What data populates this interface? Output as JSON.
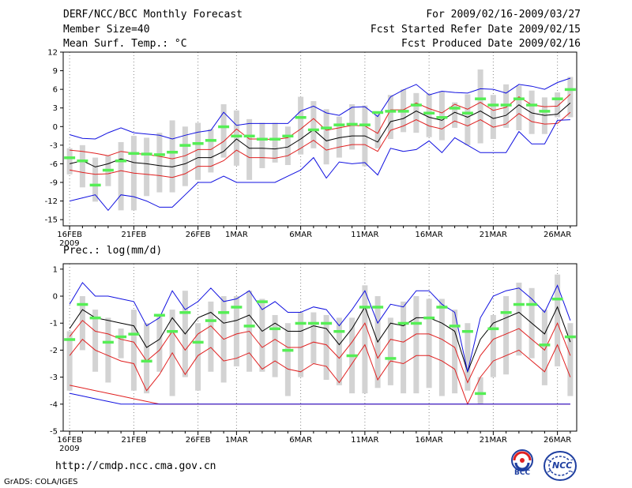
{
  "header": {
    "title": "DERF/NCC/BCC Monthly Forecast",
    "member_size": "Member Size=40",
    "variable": "Mean Surf. Temp.: °C",
    "period": "For 2009/02/16-2009/03/27",
    "refer_date": "Fcst Started Refer Date 2009/02/15",
    "produced_date": "Fcst Produced Date 2009/02/16"
  },
  "footer": {
    "url": "http://cmdp.ncc.cma.gov.cn",
    "credit": "GrADS: COLA/IGES",
    "logo_bcc": "BCC",
    "logo_ncc": "NCC"
  },
  "colors": {
    "box": "#d3d3d3",
    "mean_marker": "#55ee55",
    "ensemble_mean": "#000000",
    "spread_inner": "#e02020",
    "spread_outer": "#1010e0"
  },
  "chart_data": [
    {
      "type": "line",
      "title": "Mean Surf. Temp.: °C",
      "ylabel": "°C",
      "x_dates": [
        "16FEB",
        "17FEB",
        "18FEB",
        "19FEB",
        "20FEB",
        "21FEB",
        "22FEB",
        "23FEB",
        "24FEB",
        "25FEB",
        "26FEB",
        "27FEB",
        "28FEB",
        "1MAR",
        "2MAR",
        "3MAR",
        "4MAR",
        "5MAR",
        "6MAR",
        "7MAR",
        "8MAR",
        "9MAR",
        "10MAR",
        "11MAR",
        "12MAR",
        "13MAR",
        "14MAR",
        "15MAR",
        "16MAR",
        "17MAR",
        "18MAR",
        "19MAR",
        "20MAR",
        "21MAR",
        "22MAR",
        "23MAR",
        "24MAR",
        "25MAR",
        "26MAR",
        "27MAR"
      ],
      "xtick_labels": [
        "16FEB",
        "21FEB",
        "26FEB",
        "1MAR",
        "6MAR",
        "11MAR",
        "16MAR",
        "21MAR",
        "26MAR"
      ],
      "xtick_index": [
        0,
        5,
        10,
        13,
        18,
        23,
        28,
        33,
        38
      ],
      "year_label": "2009",
      "ylim": [
        -16,
        12
      ],
      "yticks": [
        12,
        9,
        6,
        3,
        0,
        -3,
        -6,
        -9,
        -12,
        -15
      ],
      "series": [
        {
          "name": "ensemble mean",
          "values": [
            -6.0,
            -5.5,
            -6.5,
            -6.0,
            -5.2,
            -5.8,
            -6.0,
            -6.3,
            -6.5,
            -6.0,
            -5.0,
            -5.0,
            -4.0,
            -2.0,
            -3.5,
            -3.5,
            -3.6,
            -3.3,
            -2.0,
            -0.5,
            -2.3,
            -1.8,
            -1.5,
            -1.5,
            -2.5,
            0.8,
            1.3,
            2.5,
            1.5,
            1.0,
            2.3,
            1.5,
            2.5,
            1.3,
            1.8,
            3.5,
            2.2,
            1.8,
            2.0,
            3.8
          ]
        },
        {
          "name": "spread inner upper",
          "values": [
            -3.8,
            -4.0,
            -4.3,
            -4.7,
            -4.0,
            -4.3,
            -4.5,
            -4.8,
            -5.2,
            -4.7,
            -3.7,
            -3.7,
            -2.4,
            -0.4,
            -2.0,
            -2.0,
            -2.1,
            -1.8,
            -0.4,
            1.3,
            -0.6,
            -0.2,
            0.2,
            0.1,
            -1.1,
            2.7,
            2.7,
            3.8,
            2.9,
            2.2,
            3.6,
            2.8,
            3.9,
            2.6,
            3.1,
            4.8,
            3.5,
            3.2,
            3.3,
            5.2
          ]
        },
        {
          "name": "spread inner lower",
          "values": [
            -7.0,
            -7.4,
            -7.7,
            -7.6,
            -7.1,
            -7.5,
            -7.7,
            -7.9,
            -8.2,
            -7.6,
            -6.4,
            -6.4,
            -5.5,
            -3.8,
            -5.0,
            -5.0,
            -5.1,
            -4.7,
            -3.5,
            -2.2,
            -3.8,
            -3.3,
            -2.9,
            -2.9,
            -4.0,
            -0.6,
            0.1,
            1.1,
            0.1,
            -0.4,
            0.9,
            0.1,
            1.1,
            -0.1,
            0.4,
            2.1,
            0.8,
            0.4,
            0.5,
            2.3
          ]
        },
        {
          "name": "spread outer upper",
          "values": [
            -1.3,
            -1.9,
            -2.0,
            -1.0,
            -0.2,
            -1.0,
            -1.2,
            -1.4,
            -2.0,
            -1.4,
            -0.9,
            -0.6,
            2.3,
            0.2,
            0.5,
            0.5,
            0.5,
            0.5,
            2.5,
            3.3,
            2.2,
            1.8,
            3.1,
            3.2,
            1.6,
            4.8,
            5.9,
            6.8,
            5.1,
            5.7,
            5.5,
            5.4,
            6.1,
            6.0,
            5.4,
            6.8,
            6.5,
            6.0,
            7.1,
            7.8
          ]
        },
        {
          "name": "spread outer lower",
          "values": [
            -12.0,
            -11.5,
            -11.0,
            -13.5,
            -11.0,
            -11.3,
            -12.0,
            -13.0,
            -13.0,
            -11.0,
            -9.0,
            -9.0,
            -8.0,
            -9.0,
            -9.0,
            -9.0,
            -9.0,
            -8.0,
            -7.0,
            -5.0,
            -8.3,
            -5.7,
            -6.0,
            -5.8,
            -7.8,
            -3.5,
            -4.0,
            -3.7,
            -2.3,
            -4.2,
            -1.8,
            -3.0,
            -4.2,
            -4.2,
            -4.2,
            -0.8,
            -2.8,
            -2.8,
            1.0,
            1.1
          ]
        }
      ],
      "mean_markers": [
        -5.0,
        -5.5,
        -9.4,
        -7.0,
        -5.5,
        -4.3,
        -4.4,
        -4.5,
        -4.1,
        -3.0,
        -2.7,
        -2.2,
        0.0,
        -1.5,
        -1.5,
        -2.0,
        -2.0,
        -1.5,
        1.5,
        -0.5,
        -0.2,
        0.3,
        0.4,
        0.3,
        2.3,
        2.5,
        2.5,
        3.5,
        2.2,
        1.5,
        3.0,
        2.2,
        4.5,
        3.5,
        3.5,
        4.5,
        3.5,
        2.5,
        4.5,
        6.0
      ],
      "box_high": [
        -3.5,
        -3.0,
        -5.0,
        -4.7,
        -2.5,
        -1.5,
        -1.8,
        -1.0,
        1.0,
        0.0,
        0.6,
        -0.4,
        3.6,
        2.6,
        1.2,
        0.6,
        0.6,
        0.0,
        4.8,
        4.1,
        2.8,
        1.6,
        3.6,
        3.4,
        2.0,
        5.1,
        6.0,
        5.4,
        5.3,
        5.7,
        3.9,
        5.2,
        9.2,
        5.1,
        6.8,
        6.6,
        5.8,
        4.7,
        5.5,
        8.0
      ],
      "box_low": [
        -7.7,
        -9.8,
        -12.1,
        -9.6,
        -13.5,
        -13.5,
        -11.2,
        -10.6,
        -10.6,
        -9.6,
        -8.6,
        -7.4,
        -5.0,
        -6.3,
        -8.6,
        -6.7,
        -5.8,
        -6.2,
        -4.5,
        -3.5,
        -6.1,
        -5.0,
        -3.7,
        -6.4,
        -3.5,
        -2.0,
        -0.9,
        -1.0,
        -1.7,
        -2.2,
        -0.2,
        -3.0,
        -2.7,
        -2.0,
        -0.2,
        -0.6,
        -1.2,
        -1.2,
        1.5,
        1.5
      ]
    },
    {
      "type": "line",
      "title": "Prec.: log(mm/d)",
      "ylabel": "log(mm/d)",
      "x_dates": [
        "16FEB",
        "17FEB",
        "18FEB",
        "19FEB",
        "20FEB",
        "21FEB",
        "22FEB",
        "23FEB",
        "24FEB",
        "25FEB",
        "26FEB",
        "27FEB",
        "28FEB",
        "1MAR",
        "2MAR",
        "3MAR",
        "4MAR",
        "5MAR",
        "6MAR",
        "7MAR",
        "8MAR",
        "9MAR",
        "10MAR",
        "11MAR",
        "12MAR",
        "13MAR",
        "14MAR",
        "15MAR",
        "16MAR",
        "17MAR",
        "18MAR",
        "19MAR",
        "20MAR",
        "21MAR",
        "22MAR",
        "23MAR",
        "24MAR",
        "25MAR",
        "26MAR",
        "27MAR"
      ],
      "xtick_labels": [
        "16FEB",
        "21FEB",
        "26FEB",
        "1MAR",
        "6MAR",
        "11MAR",
        "16MAR",
        "21MAR",
        "26MAR"
      ],
      "xtick_index": [
        0,
        5,
        10,
        13,
        18,
        23,
        28,
        33,
        38
      ],
      "year_label": "2009",
      "ylim": [
        -5,
        1.2
      ],
      "yticks": [
        1,
        0,
        -1,
        -2,
        -3,
        -4,
        -5
      ],
      "series": [
        {
          "name": "ensemble mean",
          "values": [
            -1.2,
            -0.5,
            -0.8,
            -0.9,
            -1.0,
            -1.1,
            -1.9,
            -1.6,
            -0.8,
            -1.4,
            -0.8,
            -0.6,
            -1.0,
            -0.9,
            -0.7,
            -1.3,
            -1.0,
            -1.3,
            -1.3,
            -1.1,
            -1.2,
            -1.8,
            -1.2,
            -0.4,
            -1.7,
            -1.0,
            -1.1,
            -0.8,
            -0.8,
            -1.0,
            -1.3,
            -2.8,
            -1.6,
            -1.0,
            -0.8,
            -0.6,
            -1.0,
            -1.4,
            -0.4,
            -1.7
          ]
        },
        {
          "name": "spread inner upper",
          "values": [
            -1.5,
            -0.9,
            -1.3,
            -1.4,
            -1.6,
            -1.7,
            -2.4,
            -2.0,
            -1.3,
            -2.0,
            -1.4,
            -1.1,
            -1.6,
            -1.4,
            -1.3,
            -1.9,
            -1.6,
            -1.9,
            -1.9,
            -1.7,
            -1.8,
            -2.3,
            -1.7,
            -1.0,
            -2.3,
            -1.6,
            -1.7,
            -1.4,
            -1.4,
            -1.6,
            -1.9,
            -3.2,
            -2.2,
            -1.6,
            -1.4,
            -1.2,
            -1.6,
            -2.0,
            -1.0,
            -2.2
          ]
        },
        {
          "name": "spread inner lower",
          "values": [
            -2.2,
            -1.6,
            -2.0,
            -2.2,
            -2.4,
            -2.5,
            -3.5,
            -2.9,
            -2.1,
            -2.9,
            -2.2,
            -1.9,
            -2.4,
            -2.3,
            -2.1,
            -2.7,
            -2.4,
            -2.7,
            -2.8,
            -2.5,
            -2.6,
            -3.2,
            -2.5,
            -1.8,
            -3.1,
            -2.4,
            -2.5,
            -2.2,
            -2.2,
            -2.4,
            -2.7,
            -4.0,
            -3.0,
            -2.4,
            -2.2,
            -2.0,
            -2.4,
            -2.8,
            -1.8,
            -3.0
          ]
        },
        {
          "name": "spread inner floor",
          "values": [
            -3.3,
            -3.4,
            -3.5,
            -3.6,
            -3.7,
            -3.8,
            -3.9,
            -4.0,
            -4.0,
            -4.0,
            -4.0,
            -4.0,
            -4.0,
            -4.0,
            -4.0,
            -4.0,
            -4.0,
            -4.0,
            -4.0,
            -4.0,
            -4.0,
            -4.0,
            -4.0,
            -4.0,
            -4.0,
            -4.0,
            -4.0,
            -4.0,
            -4.0,
            -4.0,
            -4.0,
            -4.0,
            -4.0,
            -4.0,
            -4.0,
            -4.0,
            -4.0,
            -4.0,
            -4.0,
            -4.0
          ]
        },
        {
          "name": "spread outer upper",
          "values": [
            -0.3,
            0.5,
            0.0,
            0.0,
            -0.1,
            -0.2,
            -1.1,
            -0.8,
            0.2,
            -0.5,
            -0.2,
            0.3,
            -0.2,
            -0.1,
            0.2,
            -0.5,
            -0.2,
            -0.6,
            -0.6,
            -0.4,
            -0.5,
            -1.1,
            -0.5,
            0.2,
            -1.0,
            -0.3,
            -0.4,
            0.2,
            0.2,
            -0.3,
            -0.6,
            -2.8,
            -0.8,
            0.0,
            0.2,
            0.3,
            -0.1,
            -0.6,
            0.4,
            -0.9
          ]
        },
        {
          "name": "spread outer lower",
          "values": [
            -3.6,
            -3.7,
            -3.8,
            -3.9,
            -4.0,
            -4.0,
            -4.0,
            -4.0,
            -4.0,
            -4.0,
            -4.0,
            -4.0,
            -4.0,
            -4.0,
            -4.0,
            -4.0,
            -4.0,
            -4.0,
            -4.0,
            -4.0,
            -4.0,
            -4.0,
            -4.0,
            -4.0,
            -4.0,
            -4.0,
            -4.0,
            -4.0,
            -4.0,
            -4.0,
            -4.0,
            -4.0,
            -4.0,
            -4.0,
            -4.0,
            -4.0,
            -4.0,
            -4.0,
            -4.0,
            -4.0
          ]
        }
      ],
      "mean_markers": [
        -1.6,
        -0.3,
        -0.8,
        -1.7,
        -1.5,
        -1.4,
        -2.4,
        -0.7,
        -1.3,
        -0.6,
        -1.7,
        -0.9,
        -0.6,
        -0.4,
        -1.1,
        -0.2,
        -1.2,
        -2.0,
        -1.0,
        -1.0,
        -1.0,
        -1.3,
        -2.2,
        -0.4,
        -0.4,
        -2.3,
        -1.0,
        -1.0,
        -0.8,
        -0.4,
        -1.1,
        -1.3,
        -3.6,
        -1.2,
        -0.6,
        -0.3,
        -0.3,
        -1.8,
        -0.1,
        -1.5
      ],
      "box_high": [
        -1.3,
        0.0,
        -0.5,
        -0.8,
        -1.2,
        -0.5,
        -1.0,
        -0.7,
        -0.5,
        0.2,
        -1.0,
        -0.2,
        0.0,
        0.0,
        0.2,
        -0.1,
        -0.7,
        -1.0,
        -0.6,
        -0.6,
        -0.7,
        -0.8,
        -0.8,
        0.4,
        0.0,
        -0.8,
        -0.2,
        0.0,
        -0.1,
        -0.1,
        -0.5,
        -1.0,
        -3.0,
        -0.7,
        0.0,
        0.5,
        0.3,
        -0.5,
        0.8,
        -1.0
      ],
      "box_low": [
        -3.5,
        -2.0,
        -2.8,
        -3.2,
        -2.3,
        -3.5,
        -3.6,
        -2.8,
        -3.7,
        -3.0,
        -3.5,
        -2.8,
        -3.2,
        -2.6,
        -2.8,
        -2.8,
        -3.0,
        -3.7,
        -3.0,
        -2.5,
        -3.1,
        -3.3,
        -3.6,
        -3.6,
        -3.4,
        -3.3,
        -3.6,
        -3.6,
        -3.4,
        -3.7,
        -3.6,
        -3.5,
        -4.0,
        -3.0,
        -2.9,
        -2.2,
        -2.3,
        -3.3,
        -2.6,
        -3.7
      ]
    }
  ]
}
